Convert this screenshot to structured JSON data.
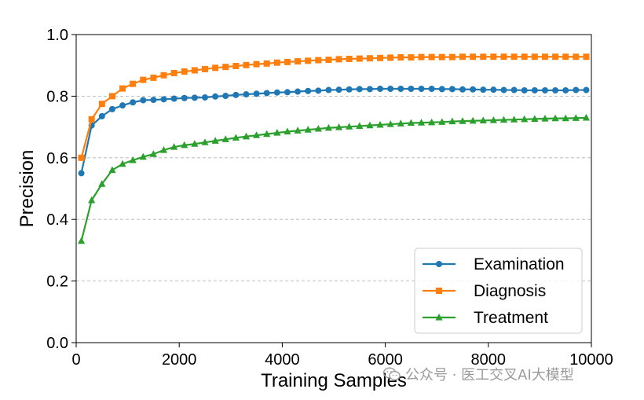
{
  "chart_data": {
    "type": "line",
    "title": "",
    "xlabel": "Training Samples",
    "ylabel": "Precision",
    "xlim": [
      0,
      10000
    ],
    "ylim": [
      0.0,
      1.0
    ],
    "xticks": [
      0,
      2000,
      4000,
      6000,
      8000,
      10000
    ],
    "yticks": [
      0.0,
      0.2,
      0.4,
      0.6,
      0.8,
      1.0
    ],
    "xtick_labels": [
      "0",
      "2000",
      "4000",
      "6000",
      "8000",
      "10000"
    ],
    "ytick_labels": [
      "0.0",
      "0.2",
      "0.4",
      "0.6",
      "0.8",
      "1.0"
    ],
    "grid": "y-dashed",
    "legend_position": "lower-right",
    "x": [
      100,
      300,
      500,
      700,
      900,
      1100,
      1300,
      1500,
      1700,
      1900,
      2100,
      2300,
      2500,
      2700,
      2900,
      3100,
      3300,
      3500,
      3700,
      3900,
      4100,
      4300,
      4500,
      4700,
      4900,
      5100,
      5300,
      5500,
      5700,
      5900,
      6100,
      6300,
      6500,
      6700,
      6900,
      7100,
      7300,
      7500,
      7700,
      7900,
      8100,
      8300,
      8500,
      8700,
      8900,
      9100,
      9300,
      9500,
      9700,
      9900
    ],
    "series": [
      {
        "name": "Examination",
        "color": "#1f77b4",
        "marker": "circle",
        "values": [
          0.55,
          0.705,
          0.735,
          0.758,
          0.77,
          0.78,
          0.787,
          0.788,
          0.79,
          0.792,
          0.794,
          0.795,
          0.796,
          0.799,
          0.801,
          0.804,
          0.806,
          0.808,
          0.81,
          0.812,
          0.813,
          0.815,
          0.817,
          0.818,
          0.82,
          0.821,
          0.822,
          0.823,
          0.823,
          0.824,
          0.824,
          0.824,
          0.824,
          0.824,
          0.824,
          0.823,
          0.823,
          0.822,
          0.822,
          0.821,
          0.821,
          0.82,
          0.82,
          0.819,
          0.819,
          0.819,
          0.819,
          0.819,
          0.82,
          0.82
        ]
      },
      {
        "name": "Diagnosis",
        "color": "#ff7f0e",
        "marker": "square",
        "values": [
          0.6,
          0.725,
          0.775,
          0.8,
          0.825,
          0.84,
          0.853,
          0.86,
          0.868,
          0.875,
          0.88,
          0.884,
          0.888,
          0.892,
          0.895,
          0.898,
          0.901,
          0.904,
          0.906,
          0.909,
          0.911,
          0.913,
          0.915,
          0.917,
          0.918,
          0.92,
          0.921,
          0.922,
          0.923,
          0.924,
          0.925,
          0.926,
          0.926,
          0.927,
          0.927,
          0.927,
          0.927,
          0.928,
          0.928,
          0.928,
          0.928,
          0.928,
          0.928,
          0.928,
          0.928,
          0.928,
          0.928,
          0.928,
          0.928,
          0.928
        ]
      },
      {
        "name": "Treatment",
        "color": "#2ca02c",
        "marker": "triangle",
        "values": [
          0.33,
          0.462,
          0.515,
          0.56,
          0.58,
          0.592,
          0.603,
          0.612,
          0.625,
          0.635,
          0.641,
          0.645,
          0.65,
          0.655,
          0.66,
          0.665,
          0.669,
          0.673,
          0.677,
          0.681,
          0.685,
          0.688,
          0.691,
          0.694,
          0.697,
          0.699,
          0.701,
          0.703,
          0.705,
          0.707,
          0.709,
          0.711,
          0.713,
          0.714,
          0.715,
          0.716,
          0.718,
          0.719,
          0.72,
          0.721,
          0.722,
          0.723,
          0.724,
          0.725,
          0.726,
          0.727,
          0.728,
          0.728,
          0.729,
          0.73
        ]
      }
    ]
  },
  "watermark": {
    "text": "公众号 · 医工交叉AI大模型",
    "icon": "wechat-icon"
  }
}
